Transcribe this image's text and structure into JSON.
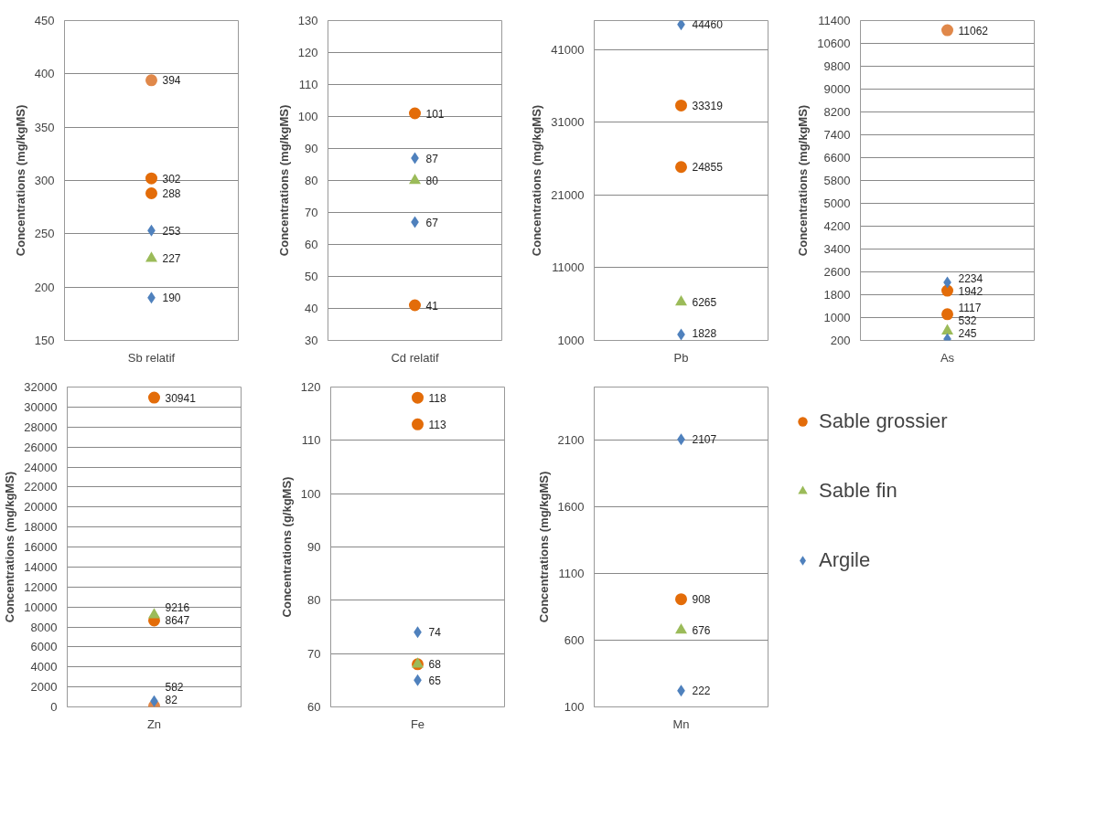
{
  "chart_data": [
    {
      "type": "scatter",
      "categories": [
        "Sb relatif"
      ],
      "ylabel": "Concentrations (mg/kgMS)",
      "ylim": [
        150,
        450
      ],
      "yticks": [
        150,
        200,
        250,
        300,
        350,
        400,
        450
      ],
      "grid": "y",
      "data_labels": true,
      "series": [
        {
          "color": "#e36c09",
          "colors": [
            "#e0884a",
            "#e36c09",
            "#e36c09"
          ],
          "marker": "circle",
          "x": [
            "Sb relatif",
            "Sb relatif",
            "Sb relatif"
          ],
          "values": [
            394,
            302,
            288
          ]
        },
        {
          "color": "#9bbb59",
          "marker": "triangle",
          "x": [
            "Sb relatif"
          ],
          "values": [
            227
          ]
        },
        {
          "color": "#4f81bd",
          "marker": "diamond",
          "x": [
            "Sb relatif",
            "Sb relatif"
          ],
          "values": [
            253,
            190
          ]
        }
      ]
    },
    {
      "type": "scatter",
      "categories": [
        "Cd relatif"
      ],
      "ylabel": "Concentrations (mg/kgMS)",
      "ylim": [
        30,
        130
      ],
      "yticks": [
        30,
        40,
        50,
        60,
        70,
        80,
        90,
        100,
        110,
        120,
        130
      ],
      "grid": "y",
      "data_labels": true,
      "series": [
        {
          "color": "#e36c09",
          "marker": "circle",
          "x": [
            "Cd relatif",
            "Cd relatif"
          ],
          "values": [
            101,
            41
          ]
        },
        {
          "color": "#9bbb59",
          "marker": "triangle",
          "x": [
            "Cd relatif"
          ],
          "values": [
            80
          ]
        },
        {
          "color": "#4f81bd",
          "marker": "diamond",
          "x": [
            "Cd relatif",
            "Cd relatif"
          ],
          "values": [
            87,
            67
          ]
        }
      ]
    },
    {
      "type": "scatter",
      "categories": [
        "Pb"
      ],
      "ylabel": "Concentrations (mg/kgMS)",
      "ylim": [
        1000,
        45000
      ],
      "yticks": [
        1000,
        11000,
        21000,
        31000,
        41000
      ],
      "grid": "y",
      "data_labels": true,
      "series": [
        {
          "color": "#e36c09",
          "marker": "circle",
          "x": [
            "Pb",
            "Pb"
          ],
          "values": [
            33319,
            24855
          ]
        },
        {
          "color": "#9bbb59",
          "marker": "triangle",
          "x": [
            "Pb"
          ],
          "values": [
            6265
          ]
        },
        {
          "color": "#4f81bd",
          "marker": "diamond",
          "x": [
            "Pb",
            "Pb"
          ],
          "values": [
            44460,
            1828
          ]
        }
      ]
    },
    {
      "type": "scatter",
      "categories": [
        "As"
      ],
      "ylabel": "Concentrations (mg/kgMS)",
      "ylim": [
        200,
        11400
      ],
      "yticks": [
        200,
        1000,
        1800,
        2600,
        3400,
        4200,
        5000,
        5800,
        6600,
        7400,
        8200,
        9000,
        9800,
        10600,
        11400
      ],
      "grid": "y",
      "data_labels": true,
      "series": [
        {
          "color": "#e36c09",
          "colors": [
            "#e0884a",
            "#e36c09",
            "#e36c09"
          ],
          "marker": "circle",
          "x": [
            "As",
            "As",
            "As"
          ],
          "values": [
            11062,
            1942,
            1117
          ]
        },
        {
          "color": "#9bbb59",
          "marker": "triangle",
          "x": [
            "As"
          ],
          "values": [
            532
          ]
        },
        {
          "color": "#4f81bd",
          "marker": "diamond",
          "x": [
            "As",
            "As"
          ],
          "values": [
            2234,
            245
          ]
        }
      ]
    },
    {
      "type": "scatter",
      "categories": [
        "Zn"
      ],
      "ylabel": "Concentrations (mg/kgMS)",
      "ylim": [
        0,
        32000
      ],
      "yticks": [
        0,
        2000,
        4000,
        6000,
        8000,
        10000,
        12000,
        14000,
        16000,
        18000,
        20000,
        22000,
        24000,
        26000,
        28000,
        30000,
        32000
      ],
      "grid": "y",
      "data_labels": true,
      "series": [
        {
          "color": "#e36c09",
          "colors": [
            "#e36c09",
            "#e36c09",
            "#e0884a"
          ],
          "marker": "circle",
          "x": [
            "Zn",
            "Zn",
            "Zn"
          ],
          "values": [
            30941,
            8647,
            82
          ]
        },
        {
          "color": "#9bbb59",
          "marker": "triangle",
          "x": [
            "Zn"
          ],
          "values": [
            9216
          ]
        },
        {
          "color": "#4f81bd",
          "marker": "diamond",
          "x": [
            "Zn"
          ],
          "values": [
            582
          ]
        }
      ]
    },
    {
      "type": "scatter",
      "categories": [
        "Fe"
      ],
      "ylabel": "Concentrations (g/kgMS)",
      "ylim": [
        60,
        120
      ],
      "yticks": [
        60,
        70,
        80,
        90,
        100,
        110,
        120
      ],
      "grid": "y",
      "series": [
        {
          "color": "#e36c09",
          "marker": "circle",
          "x": [
            "Fe",
            "Fe",
            "Fe"
          ],
          "values": [
            118,
            113,
            68
          ],
          "value_labels": [
            "118",
            "113",
            "68"
          ]
        },
        {
          "color": "#9bbb59",
          "marker": "triangle",
          "x": [
            "Fe"
          ],
          "values": [
            68
          ],
          "value_labels": [
            null
          ]
        },
        {
          "color": "#4f81bd",
          "marker": "diamond",
          "x": [
            "Fe",
            "Fe"
          ],
          "values": [
            74,
            65
          ],
          "value_labels": [
            "74",
            "65"
          ]
        }
      ]
    },
    {
      "type": "scatter",
      "categories": [
        "Mn"
      ],
      "ylabel": "Concentrations (mg/kgMS)",
      "ylim": [
        100,
        2500
      ],
      "yticks": [
        100,
        600,
        1100,
        1600,
        2100
      ],
      "grid": "y",
      "data_labels": true,
      "legend": "right",
      "series": [
        {
          "name": "Sable grossier",
          "color": "#e36c09",
          "marker": "circle",
          "x": [
            "Mn"
          ],
          "values": [
            908
          ]
        },
        {
          "name": "Sable fin",
          "color": "#9bbb59",
          "marker": "triangle",
          "x": [
            "Mn"
          ],
          "values": [
            676
          ]
        },
        {
          "name": "Argile",
          "color": "#4f81bd",
          "marker": "diamond",
          "x": [
            "Mn",
            "Mn"
          ],
          "values": [
            2107,
            222
          ]
        }
      ]
    }
  ]
}
